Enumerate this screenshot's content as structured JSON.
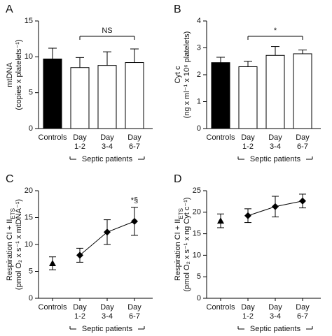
{
  "chart_data": [
    {
      "panel": "A",
      "type": "bar",
      "ylabel": "mtDNA",
      "ylabel2": "(copies x platelets⁻¹)",
      "categories": [
        [
          "Controls"
        ],
        [
          "Day",
          "1-2"
        ],
        [
          "Day",
          "3-4"
        ],
        [
          "Day",
          "6-7"
        ]
      ],
      "values": [
        9.7,
        8.5,
        8.8,
        9.2
      ],
      "errors": [
        1.5,
        1.4,
        1.9,
        1.9
      ],
      "colors": [
        "#000000",
        "#ffffff",
        "#ffffff",
        "#ffffff"
      ],
      "ylim": [
        0,
        15
      ],
      "yticks": [
        0,
        5,
        10,
        15
      ],
      "group": {
        "label": "Septic patients",
        "from": 1,
        "to": 3
      },
      "annotation": {
        "text": "NS",
        "from": 1,
        "to": 3
      }
    },
    {
      "panel": "B",
      "type": "bar",
      "ylabel": "Cyt c",
      "ylabel2": "(ng x ml⁻¹ x 10⁶ platelets)",
      "categories": [
        [
          "Controls"
        ],
        [
          "Day",
          "1-2"
        ],
        [
          "Day",
          "3-4"
        ],
        [
          "Day",
          "6-7"
        ]
      ],
      "values": [
        2.45,
        2.3,
        2.72,
        2.78
      ],
      "errors": [
        0.2,
        0.2,
        0.33,
        0.14
      ],
      "colors": [
        "#000000",
        "#ffffff",
        "#ffffff",
        "#ffffff"
      ],
      "ylim": [
        0,
        4
      ],
      "yticks": [
        0,
        1,
        2,
        3,
        4
      ],
      "group": {
        "label": "Septic patients",
        "from": 1,
        "to": 3
      },
      "annotation": {
        "text": "*",
        "from": 1,
        "to": 3
      }
    },
    {
      "panel": "C",
      "type": "line",
      "ylabel": "Respiration CI + II",
      "ylabel_subscript": "ETS",
      "ylabel2": "(pmol O₂ x s⁻¹ x mtDNA⁻¹)",
      "categories": [
        [
          "Controls"
        ],
        [
          "Day",
          "1-2"
        ],
        [
          "Day",
          "3-4"
        ],
        [
          "Day",
          "6-7"
        ]
      ],
      "values": [
        6.5,
        8.0,
        12.3,
        14.3
      ],
      "errors": [
        1.2,
        1.3,
        2.3,
        2.6
      ],
      "markers": [
        "triangle",
        "diamond",
        "diamond",
        "diamond"
      ],
      "ylim": [
        0,
        20
      ],
      "yticks": [
        0,
        5,
        10,
        15,
        20
      ],
      "group": {
        "label": "Septic patients",
        "from": 1,
        "to": 3
      },
      "annotation": {
        "text": "*§",
        "from": 3,
        "to": 3
      }
    },
    {
      "panel": "D",
      "type": "line",
      "ylabel": "Respiration CI + II",
      "ylabel_subscript": "ETS",
      "ylabel2": "(pmol O₂ x s⁻¹ x ng Cyt c⁻¹)",
      "categories": [
        [
          "Controls"
        ],
        [
          "Day",
          "1-2"
        ],
        [
          "Day",
          "3-4"
        ],
        [
          "Day",
          "6-7"
        ]
      ],
      "values": [
        18.0,
        19.2,
        21.3,
        22.6
      ],
      "errors": [
        1.6,
        1.6,
        2.4,
        1.6
      ],
      "markers": [
        "triangle",
        "diamond",
        "diamond",
        "diamond"
      ],
      "ylim": [
        0,
        25
      ],
      "yticks": [
        0,
        5,
        10,
        15,
        20,
        25
      ],
      "group": {
        "label": "Septic patients",
        "from": 1,
        "to": 3
      }
    }
  ]
}
